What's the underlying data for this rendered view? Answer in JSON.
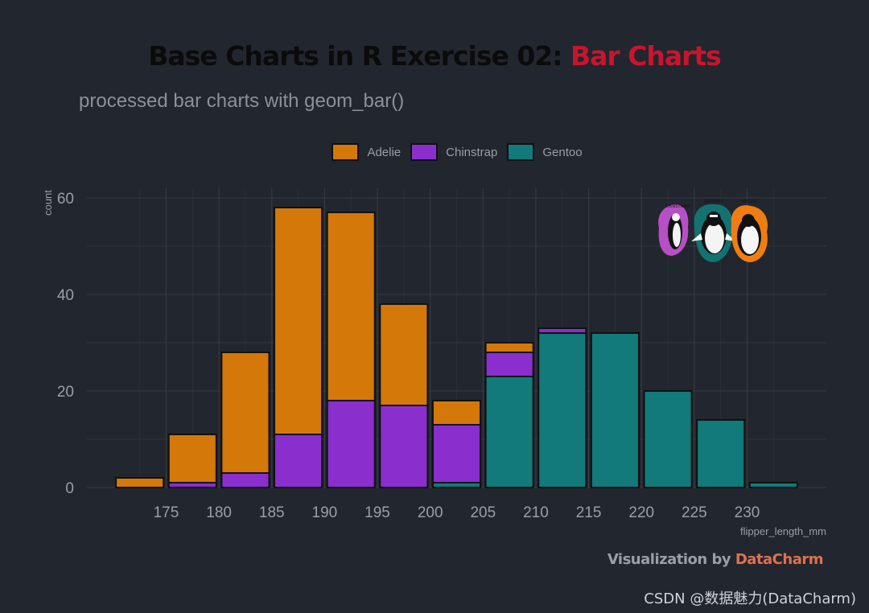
{
  "title": {
    "prefix": "Base Charts in R Exercise 02: ",
    "accent": "Bar Charts"
  },
  "subtitle": "processed bar charts with geom_bar()",
  "legend": [
    {
      "label": "Adelie",
      "color": "#d4780a"
    },
    {
      "label": "Chinstrap",
      "color": "#8a2fce"
    },
    {
      "label": "Gentoo",
      "color": "#127a7a"
    }
  ],
  "caption": {
    "prefix": "Visualization by ",
    "brand": "DataCharm"
  },
  "watermark": "CSDN @数据魅力(DataCharm)",
  "logo": {
    "icon": "penguins-illustration",
    "labels": [
      "CHINSTRAP!",
      "GENTOO!",
      "ADÉLIE!"
    ]
  },
  "colors": {
    "background": "#22262e",
    "grid": "#363b45",
    "bar_outline": "#111111",
    "title_accent": "#c8152d",
    "brand": "#e0714f"
  },
  "chart_data": {
    "type": "bar",
    "stacked": true,
    "title": "Base Charts in R Exercise 02: Bar Charts",
    "subtitle": "processed bar charts with geom_bar()",
    "xlabel": "flipper_length_mm",
    "ylabel": "count",
    "x": [
      172.5,
      177.5,
      182.5,
      187.5,
      192.5,
      197.5,
      202.5,
      207.5,
      212.5,
      217.5,
      222.5,
      227.5,
      232.5
    ],
    "xlim": [
      167.5,
      237.5
    ],
    "ylim": [
      0,
      61
    ],
    "x_ticks": [
      175,
      180,
      185,
      190,
      195,
      200,
      205,
      210,
      215,
      220,
      225,
      230
    ],
    "y_ticks": [
      0,
      20,
      40,
      60
    ],
    "grid": true,
    "legend_position": "top",
    "series": [
      {
        "name": "Adelie",
        "color": "#d4780a",
        "values": [
          2,
          10,
          25,
          47,
          39,
          21,
          5,
          2,
          0,
          0,
          0,
          0,
          0
        ]
      },
      {
        "name": "Chinstrap",
        "color": "#8a2fce",
        "values": [
          0,
          1,
          3,
          11,
          18,
          17,
          12,
          5,
          1,
          0,
          0,
          0,
          0
        ]
      },
      {
        "name": "Gentoo",
        "color": "#127a7a",
        "values": [
          0,
          0,
          0,
          0,
          0,
          0,
          1,
          23,
          32,
          32,
          20,
          14,
          1
        ]
      }
    ]
  }
}
